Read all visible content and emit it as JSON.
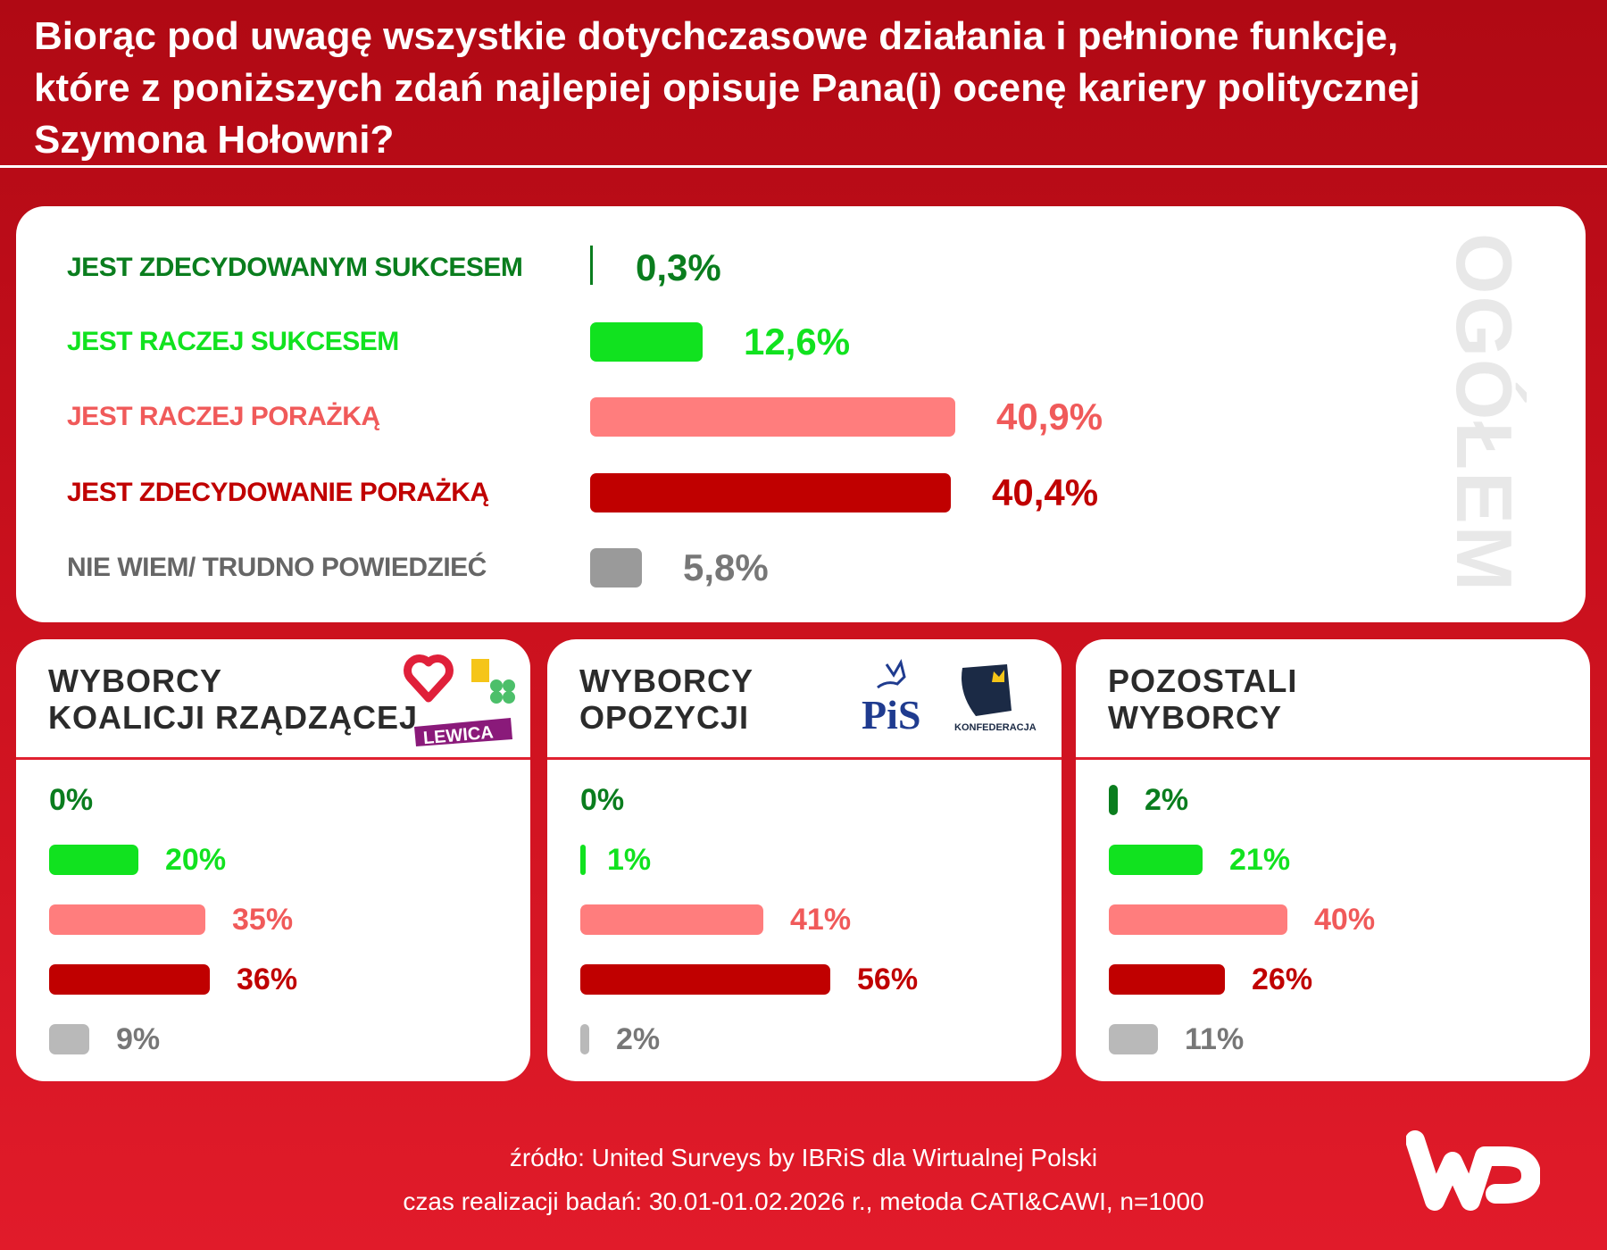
{
  "title": [
    "Biorąc pod uwagę wszystkie dotychczasowe działania i pełnione funkcje,",
    "które z poniższych zdań najlepiej opisuje Pana(i) ocenę kariery politycznej",
    "Szymona Hołowni?"
  ],
  "colors": {
    "strong_success": "#0a7d1e",
    "success": "#11e21f",
    "failure": "#ff7d7d",
    "strong_failure": "#c00000",
    "dont_know": "#9a9a9a",
    "dont_know_sub": "#b9b9b9",
    "background": "#c9101d"
  },
  "chart_data": [
    {
      "type": "bar",
      "orientation": "horizontal",
      "title": "OGÓŁEM",
      "unit": "%",
      "categories": [
        "JEST ZDECYDOWANYM SUKCESEM",
        "JEST RACZEJ SUKCESEM",
        "JEST RACZEJ PORAŻKĄ",
        "JEST ZDECYDOWANIE PORAŻKĄ",
        "NIE WIEM/ TRUDNO POWIEDZIEĆ"
      ],
      "values": [
        0.3,
        12.6,
        40.9,
        40.4,
        5.8
      ],
      "value_labels": [
        "0,3%",
        "12,6%",
        "40,9%",
        "40,4%",
        "5,8%"
      ]
    },
    {
      "type": "bar",
      "orientation": "horizontal",
      "title": [
        "WYBORCY",
        "KOALICJI RZĄDZĄCEJ"
      ],
      "unit": "%",
      "values": [
        0,
        20,
        35,
        36,
        9
      ],
      "value_labels": [
        "0%",
        "20%",
        "35%",
        "36%",
        "9%"
      ],
      "logos": [
        "heart-logo",
        "2050-logo",
        "clover-logo",
        "LEWICA"
      ]
    },
    {
      "type": "bar",
      "orientation": "horizontal",
      "title": [
        "WYBORCY",
        "OPOZYCJI"
      ],
      "unit": "%",
      "values": [
        0,
        1,
        41,
        56,
        2
      ],
      "value_labels": [
        "0%",
        "1%",
        "41%",
        "56%",
        "2%"
      ],
      "logos": [
        "PiS",
        "KONFEDERACJA"
      ]
    },
    {
      "type": "bar",
      "orientation": "horizontal",
      "title": [
        "POZOSTALI",
        "WYBORCY"
      ],
      "unit": "%",
      "values": [
        2,
        21,
        40,
        26,
        11
      ],
      "value_labels": [
        "2%",
        "21%",
        "40%",
        "26%",
        "11%"
      ]
    }
  ],
  "footer": {
    "source": "źródło: United Surveys by IBRiS dla Wirtualnej Polski",
    "method": "czas realizacji badań: 30.01-01.02.2026 r., metoda CATI&CAWI, n=1000"
  },
  "brand": "WP"
}
